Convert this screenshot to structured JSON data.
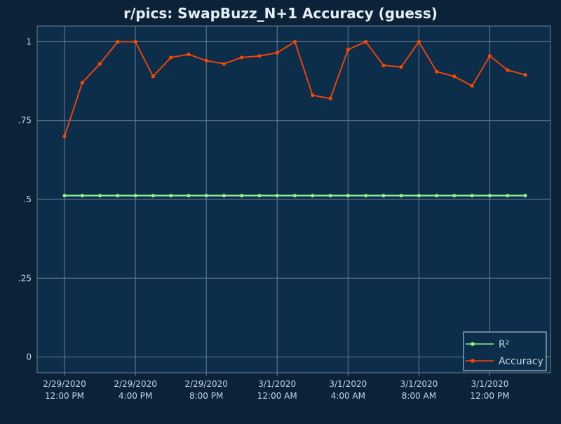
{
  "chart_data": {
    "type": "line",
    "title": "r/pics: SwapBuzz_N+1 Accuracy (guess)",
    "xlabel": "",
    "ylabel": "",
    "ylim": [
      -0.05,
      1.05
    ],
    "y_ticks": [
      {
        "value": 0,
        "label": "0"
      },
      {
        "value": 0.25,
        "label": ".25"
      },
      {
        "value": 0.5,
        "label": ".5"
      },
      {
        "value": 0.75,
        "label": ".75"
      },
      {
        "value": 1,
        "label": "1"
      }
    ],
    "x_ticks": [
      {
        "value": "2020-02-29T12:00",
        "date": "2/29/2020",
        "time": "12:00 PM"
      },
      {
        "value": "2020-02-29T16:00",
        "date": "2/29/2020",
        "time": "4:00 PM"
      },
      {
        "value": "2020-02-29T20:00",
        "date": "2/29/2020",
        "time": "8:00 PM"
      },
      {
        "value": "2020-03-01T00:00",
        "date": "3/1/2020",
        "time": "12:00 AM"
      },
      {
        "value": "2020-03-01T04:00",
        "date": "3/1/2020",
        "time": "4:00 AM"
      },
      {
        "value": "2020-03-01T08:00",
        "date": "3/1/2020",
        "time": "8:00 AM"
      },
      {
        "value": "2020-03-01T12:00",
        "date": "3/1/2020",
        "time": "12:00 PM"
      }
    ],
    "x": [
      "2020-02-29T12:00",
      "2020-02-29T13:00",
      "2020-02-29T14:00",
      "2020-02-29T15:00",
      "2020-02-29T16:00",
      "2020-02-29T17:00",
      "2020-02-29T18:00",
      "2020-02-29T19:00",
      "2020-02-29T20:00",
      "2020-02-29T21:00",
      "2020-02-29T22:00",
      "2020-02-29T23:00",
      "2020-03-01T00:00",
      "2020-03-01T01:00",
      "2020-03-01T02:00",
      "2020-03-01T03:00",
      "2020-03-01T04:00",
      "2020-03-01T05:00",
      "2020-03-01T06:00",
      "2020-03-01T07:00",
      "2020-03-01T08:00",
      "2020-03-01T09:00",
      "2020-03-01T10:00",
      "2020-03-01T11:00",
      "2020-03-01T12:00",
      "2020-03-01T13:00",
      "2020-03-01T14:00"
    ],
    "series": [
      {
        "name": "R²",
        "color": "#90ee90",
        "values": [
          0.512,
          0.512,
          0.512,
          0.512,
          0.512,
          0.512,
          0.512,
          0.512,
          0.512,
          0.512,
          0.512,
          0.512,
          0.512,
          0.512,
          0.512,
          0.512,
          0.512,
          0.512,
          0.512,
          0.512,
          0.512,
          0.512,
          0.512,
          0.512,
          0.512,
          0.512,
          0.512
        ]
      },
      {
        "name": "Accuracy",
        "color": "#ff4500",
        "values": [
          0.7,
          0.87,
          0.93,
          1.0,
          1.0,
          0.89,
          0.95,
          0.96,
          0.94,
          0.93,
          0.95,
          0.955,
          0.965,
          1.0,
          0.83,
          0.82,
          0.975,
          1.0,
          0.925,
          0.92,
          1.0,
          0.905,
          0.89,
          0.86,
          0.955,
          0.91,
          0.895
        ]
      }
    ],
    "grid": true,
    "legend_position": "bottom-right",
    "colors": {
      "page_background": "#0b2238",
      "plot_background": "#0c2e4a",
      "grid": "#6e7f8e",
      "text": "#c9d6e2",
      "title": "#e6eef5"
    }
  }
}
